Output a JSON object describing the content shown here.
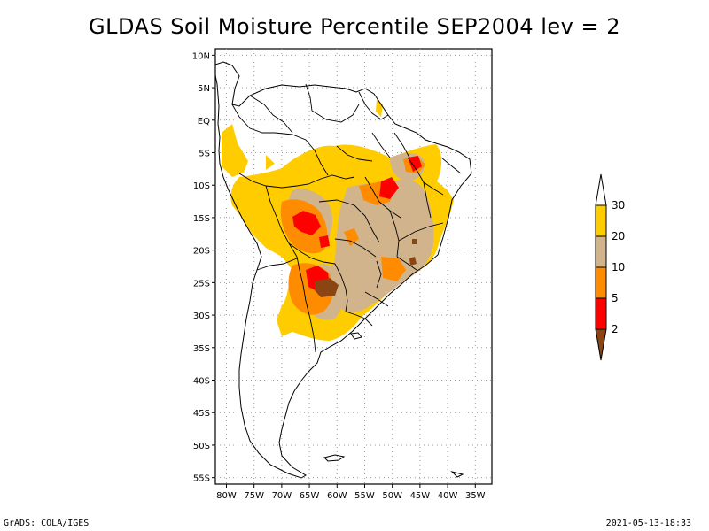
{
  "title": "GLDAS Soil Moisture Percentile SEP2004 lev = 2",
  "footer": {
    "left": "GrADS: COLA/IGES",
    "right": "2021-05-13-18:33"
  },
  "map": {
    "lon_range": [
      -82,
      -32
    ],
    "lat_range": [
      -56,
      11
    ],
    "grid_lines": "dotted",
    "lat_ticks": [
      {
        "value": 10,
        "label": "10N"
      },
      {
        "value": 5,
        "label": "5N"
      },
      {
        "value": 0,
        "label": "EQ"
      },
      {
        "value": -5,
        "label": "5S"
      },
      {
        "value": -10,
        "label": "10S"
      },
      {
        "value": -15,
        "label": "15S"
      },
      {
        "value": -20,
        "label": "20S"
      },
      {
        "value": -25,
        "label": "25S"
      },
      {
        "value": -30,
        "label": "30S"
      },
      {
        "value": -35,
        "label": "35S"
      },
      {
        "value": -40,
        "label": "40S"
      },
      {
        "value": -45,
        "label": "45S"
      },
      {
        "value": -50,
        "label": "50S"
      },
      {
        "value": -55,
        "label": "55S"
      }
    ],
    "lon_ticks": [
      {
        "value": -80,
        "label": "80W"
      },
      {
        "value": -75,
        "label": "75W"
      },
      {
        "value": -70,
        "label": "70W"
      },
      {
        "value": -65,
        "label": "65W"
      },
      {
        "value": -60,
        "label": "60W"
      },
      {
        "value": -55,
        "label": "55W"
      },
      {
        "value": -50,
        "label": "50W"
      },
      {
        "value": -45,
        "label": "45W"
      },
      {
        "value": -40,
        "label": "40W"
      },
      {
        "value": -35,
        "label": "35W"
      }
    ]
  },
  "colorbar": {
    "orientation": "vertical",
    "placement": "right",
    "levels": [
      {
        "label": "30",
        "color": "#ffffff",
        "range": "above 30"
      },
      {
        "label": "20",
        "color": "#ffcc00",
        "range": "20-30"
      },
      {
        "label": "10",
        "color": "#d2b48c",
        "range": "10-20"
      },
      {
        "label": "5",
        "color": "#ff8c00",
        "range": "5-10"
      },
      {
        "label": "2",
        "color": "#ff0000",
        "range": "2-5"
      },
      {
        "label": "",
        "color": "#8b4513",
        "range": "below 2"
      }
    ]
  }
}
